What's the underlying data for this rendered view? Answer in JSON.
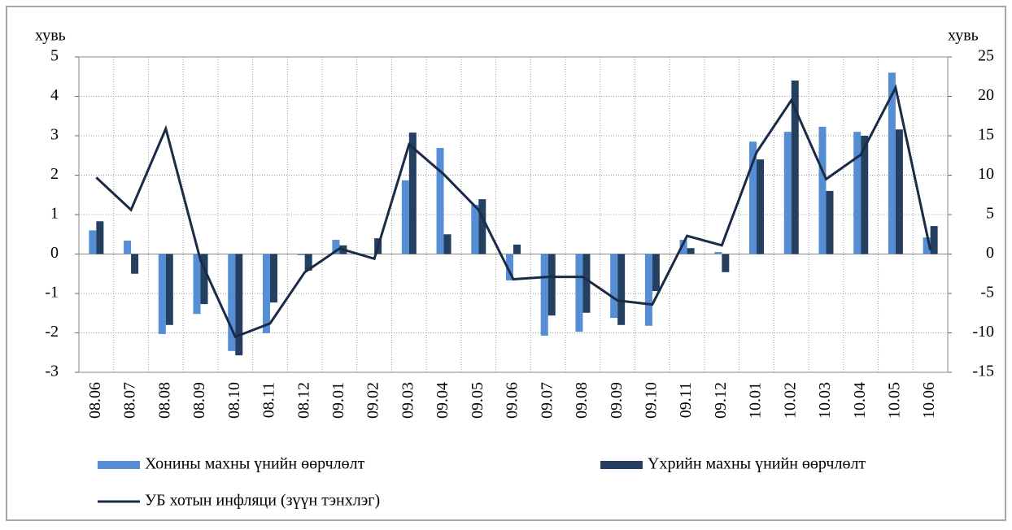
{
  "chart_data": {
    "type": "bar_line",
    "ylabel": "хувь",
    "y2label": "хувь",
    "categories": [
      "08.06",
      "08.07",
      "08.08",
      "08.09",
      "08.10",
      "08.11",
      "08.12",
      "09.01",
      "09.02",
      "09.03",
      "09.04",
      "09.05",
      "09.06",
      "09.07",
      "09.08",
      "09.09",
      "09.10",
      "09.11",
      "09.12",
      "10.01",
      "10.02",
      "10.03",
      "10.04",
      "10.05",
      "10.06"
    ],
    "series": [
      {
        "name": "Хонины махны үнийн өөрчлөлт",
        "type": "bar",
        "color": "#558ed5",
        "values": [
          0.6,
          0.34,
          -2.03,
          -1.52,
          -2.46,
          -2.01,
          -0.03,
          0.36,
          0,
          1.87,
          2.69,
          1.25,
          -0.67,
          -2.07,
          -1.97,
          -1.62,
          -1.82,
          0.36,
          0.05,
          2.85,
          3.1,
          3.23,
          3.1,
          4.6,
          0.42
        ]
      },
      {
        "name": "Үхрийн махны үнийн өөрчлөлт",
        "type": "bar",
        "color": "#243f60",
        "values": [
          0.83,
          -0.5,
          -1.8,
          -1.27,
          -2.57,
          -1.23,
          -0.42,
          0.22,
          0.4,
          3.08,
          0.5,
          1.39,
          0.24,
          -1.56,
          -1.49,
          -1.8,
          -0.94,
          0.15,
          -0.46,
          2.4,
          4.4,
          1.6,
          3.0,
          3.16,
          0.71
        ]
      },
      {
        "name": "УБ хотын инфляци (зүүн тэнхлэг)",
        "type": "line",
        "axis": "y2",
        "color": "#1a2b48",
        "values": [
          9.7,
          5.6,
          15.9,
          -0.8,
          -10.5,
          -8.8,
          -2.3,
          0.7,
          -0.6,
          13.9,
          10.1,
          5.6,
          -3.2,
          -2.9,
          -2.9,
          -5.9,
          -6.4,
          2.3,
          1.1,
          12.9,
          19.5,
          9.5,
          12.6,
          21.1,
          0.5
        ]
      }
    ],
    "ylim": [
      -3,
      5
    ],
    "yticks": [
      -3,
      -2,
      -1,
      0,
      1,
      2,
      3,
      4,
      5
    ],
    "y2lim": [
      -15,
      25
    ],
    "y2ticks": [
      -15,
      -10,
      -5,
      0,
      5,
      10,
      15,
      20,
      25
    ],
    "grid": true
  }
}
